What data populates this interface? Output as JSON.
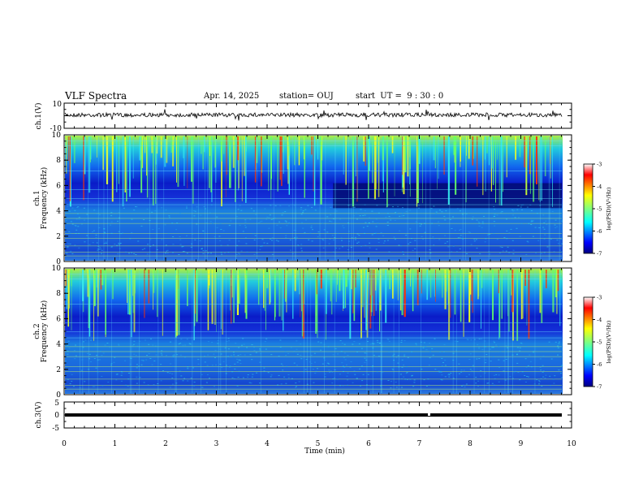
{
  "header": {
    "title": "VLF Spectra",
    "date": "Apr. 14, 2025",
    "station": "station= OUJ",
    "start": "start  UT =  9 : 30 : 0"
  },
  "chart_data": [
    {
      "type": "line",
      "id": "ch1",
      "ylabel": "ch.1(V)",
      "ylim": [
        -10,
        10
      ],
      "ticks": [
        "10",
        "-10"
      ],
      "xlim": [
        0,
        10
      ]
    },
    {
      "type": "heatmap",
      "id": "ch1-spec",
      "ylabel_top": "ch.1",
      "ylabel": "Frequency (kHz)",
      "ylim": [
        0,
        10
      ],
      "yticks": [
        "0",
        "2",
        "4",
        "6",
        "8",
        "10"
      ],
      "colorbar": {
        "label": "log(PSD)(V²/Hz)",
        "range": [
          -7,
          -3
        ],
        "ticks": [
          "-3",
          "-4",
          "-5",
          "-6",
          "-7"
        ]
      }
    },
    {
      "type": "heatmap",
      "id": "ch2-spec",
      "ylabel_top": "ch.2",
      "ylabel": "Frequency (kHz)",
      "ylim": [
        0,
        10
      ],
      "yticks": [
        "0",
        "2",
        "4",
        "6",
        "8",
        "10"
      ],
      "colorbar": {
        "label": "log(PSD)(V²/Hz)",
        "range": [
          -7,
          -3
        ],
        "ticks": [
          "-3",
          "-4",
          "-5",
          "-6",
          "-7"
        ]
      }
    },
    {
      "type": "line",
      "id": "ch3",
      "ylabel": "ch.3(V)",
      "ylim": [
        -5,
        5
      ],
      "ticks": [
        "5",
        "0",
        "-5"
      ]
    }
  ],
  "xaxis": {
    "label": "Time (min)",
    "range": [
      0,
      10
    ],
    "ticks": [
      "0",
      "1",
      "2",
      "3",
      "4",
      "5",
      "6",
      "7",
      "8",
      "9",
      "10"
    ]
  }
}
